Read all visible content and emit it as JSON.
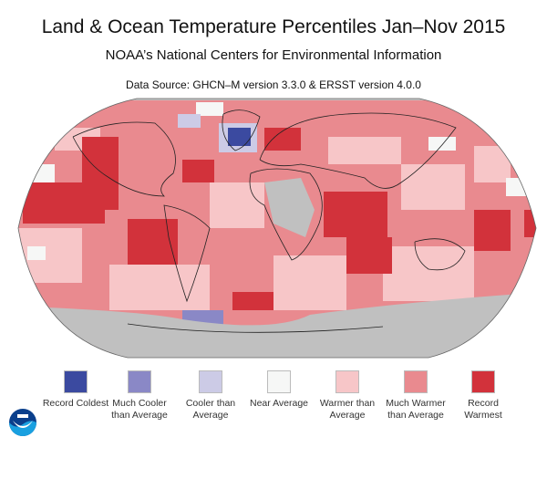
{
  "title": "Land & Ocean Temperature Percentiles Jan–Nov 2015",
  "subtitle": "NOAA’s National Centers for Environmental Information",
  "source": "Data Source: GHCN–M version 3.3.0 & ERSST version 4.0.0",
  "legend": [
    {
      "label": "Record Coldest",
      "color": "#3b4aa0"
    },
    {
      "label": "Much Cooler than Average",
      "color": "#8a88c6"
    },
    {
      "label": "Cooler than Average",
      "color": "#cccbe6"
    },
    {
      "label": "Near Average",
      "color": "#f6f7f6"
    },
    {
      "label": "Warmer than Average",
      "color": "#f7c6c8"
    },
    {
      "label": "Much Warmer than Average",
      "color": "#e98a8f"
    },
    {
      "label": "Record Warmest",
      "color": "#d2323b"
    }
  ],
  "no_data_color": "#c0c0c0",
  "logo": "NOAA"
}
